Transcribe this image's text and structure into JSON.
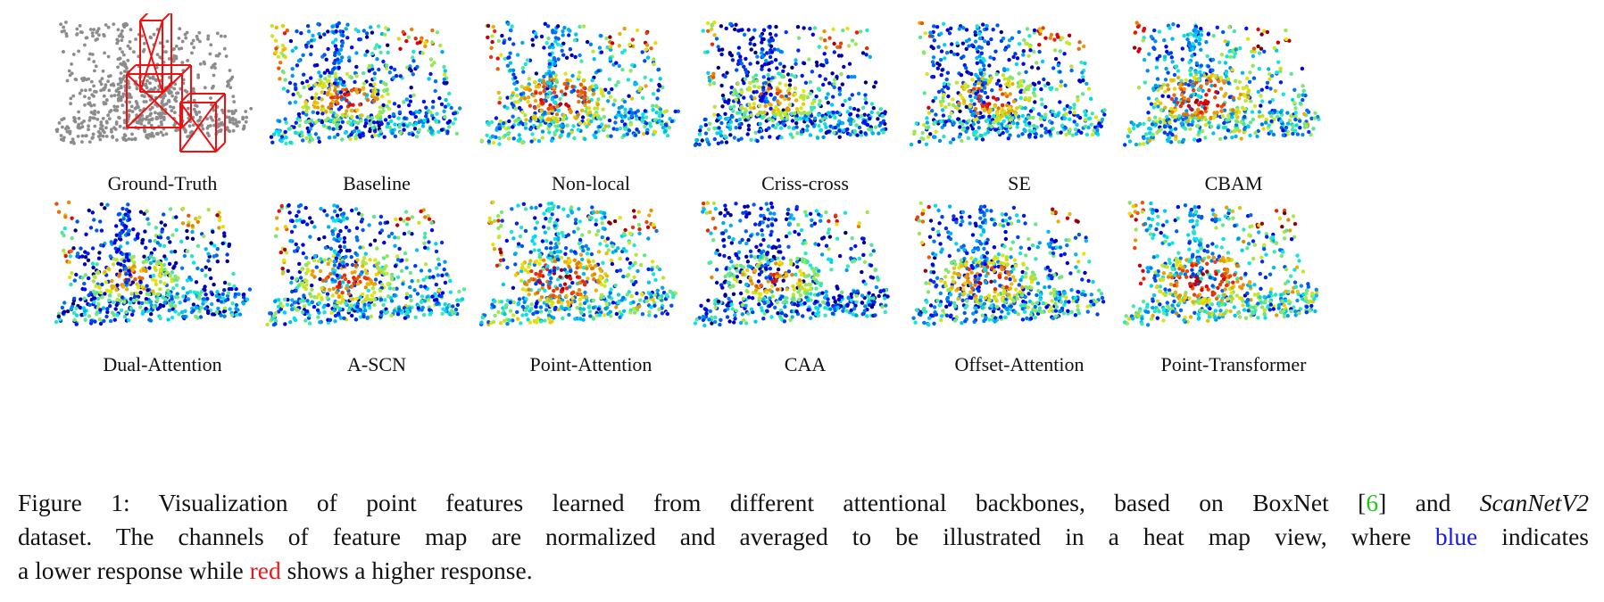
{
  "panels": [
    {
      "label": "Ground-Truth",
      "kind": "gt"
    },
    {
      "label": "Baseline",
      "kind": "heat"
    },
    {
      "label": "Non-local",
      "kind": "heat"
    },
    {
      "label": "Criss-cross",
      "kind": "heat"
    },
    {
      "label": "SE",
      "kind": "heat"
    },
    {
      "label": "CBAM",
      "kind": "heat"
    },
    {
      "label": "Dual-Attention",
      "kind": "heat"
    },
    {
      "label": "A-SCN",
      "kind": "heat"
    },
    {
      "label": "Point-Attention",
      "kind": "heat"
    },
    {
      "label": "CAA",
      "kind": "heat"
    },
    {
      "label": "Offset-Attention",
      "kind": "heat"
    },
    {
      "label": "Point-Transformer",
      "kind": "heat"
    }
  ],
  "colors": {
    "gt_points": "#8c8c8c",
    "gt_boxes": "#ee1111",
    "heat_low": "#0a1ea8",
    "heat_high": "#c81414",
    "citation": "#22c41e",
    "blue_word": "#1a1ae6",
    "red_word": "#e61a1a"
  },
  "caption": {
    "line1_prefix": "Figure 1: Visualization of point features learned from different attentional backbones, based on BoxNet [",
    "ref": "6",
    "line1_mid": "] and ",
    "dataset": "ScanNetV2",
    "line2_prefix": "dataset. The channels of feature map are normalized and averaged to be illustrated in a heat map view, where ",
    "blue_word": "blue",
    "line2_suffix": " indicates",
    "line3_prefix": "a lower response while ",
    "red_word": "red",
    "line3_suffix": " shows a higher response."
  }
}
